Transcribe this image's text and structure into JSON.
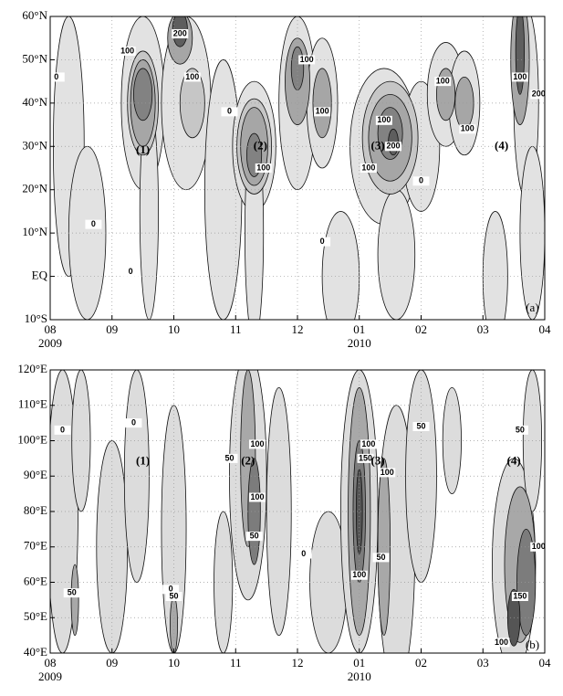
{
  "chart_data": [
    {
      "type": "contour",
      "xlim": [
        0,
        8
      ],
      "xticks": [
        {
          "value": 0,
          "label": "08"
        },
        {
          "value": 1,
          "label": "09"
        },
        {
          "value": 2,
          "label": "10"
        },
        {
          "value": 3,
          "label": "11"
        },
        {
          "value": 4,
          "label": "12"
        },
        {
          "value": 5,
          "label": "01"
        },
        {
          "value": 6,
          "label": "02"
        },
        {
          "value": 7,
          "label": "03"
        },
        {
          "value": 8,
          "label": "04"
        }
      ],
      "year_labels": [
        {
          "value": 0,
          "label": "2009"
        },
        {
          "value": 5,
          "label": "2010"
        }
      ],
      "ylim": [
        -10,
        60
      ],
      "yticks": [
        {
          "value": -10,
          "label": "10°S"
        },
        {
          "value": 0,
          "label": "EQ"
        },
        {
          "value": 10,
          "label": "10°N"
        },
        {
          "value": 20,
          "label": "20°N"
        },
        {
          "value": 30,
          "label": "30°N"
        },
        {
          "value": 40,
          "label": "40°N"
        },
        {
          "value": 50,
          "label": "50°N"
        },
        {
          "value": 60,
          "label": "60°N"
        }
      ],
      "levels": [
        0,
        50,
        100,
        150,
        200
      ],
      "level_colors": [
        "#e2e2e2",
        "#c6c6c6",
        "#a6a6a6",
        "#828282",
        "#5e5e5e"
      ],
      "annotations": [
        "(1)",
        "(2)",
        "(3)",
        "(4)",
        "(a)"
      ],
      "grid": true
    },
    {
      "type": "contour",
      "xlim": [
        0,
        8
      ],
      "xticks": [
        {
          "value": 0,
          "label": "08"
        },
        {
          "value": 1,
          "label": "09"
        },
        {
          "value": 2,
          "label": "10"
        },
        {
          "value": 3,
          "label": "11"
        },
        {
          "value": 4,
          "label": "12"
        },
        {
          "value": 5,
          "label": "01"
        },
        {
          "value": 6,
          "label": "02"
        },
        {
          "value": 7,
          "label": "03"
        },
        {
          "value": 8,
          "label": "04"
        }
      ],
      "year_labels": [
        {
          "value": 0,
          "label": "2009"
        },
        {
          "value": 5,
          "label": "2010"
        }
      ],
      "ylim": [
        40,
        120
      ],
      "yticks": [
        {
          "value": 40,
          "label": "40°E"
        },
        {
          "value": 50,
          "label": "50°E"
        },
        {
          "value": 60,
          "label": "60°E"
        },
        {
          "value": 70,
          "label": "70°E"
        },
        {
          "value": 80,
          "label": "80°E"
        },
        {
          "value": 90,
          "label": "90°E"
        },
        {
          "value": 100,
          "label": "100°E"
        },
        {
          "value": 110,
          "label": "110°E"
        },
        {
          "value": 120,
          "label": "120°E"
        }
      ],
      "levels": [
        0,
        50,
        100,
        150
      ],
      "level_colors": [
        "#dcdcdc",
        "#a8a8a8",
        "#7c7c7c",
        "#555555"
      ],
      "annotations": [
        "(1)",
        "(2)",
        "(3)",
        "(4)",
        "(b)"
      ],
      "grid": true
    }
  ]
}
